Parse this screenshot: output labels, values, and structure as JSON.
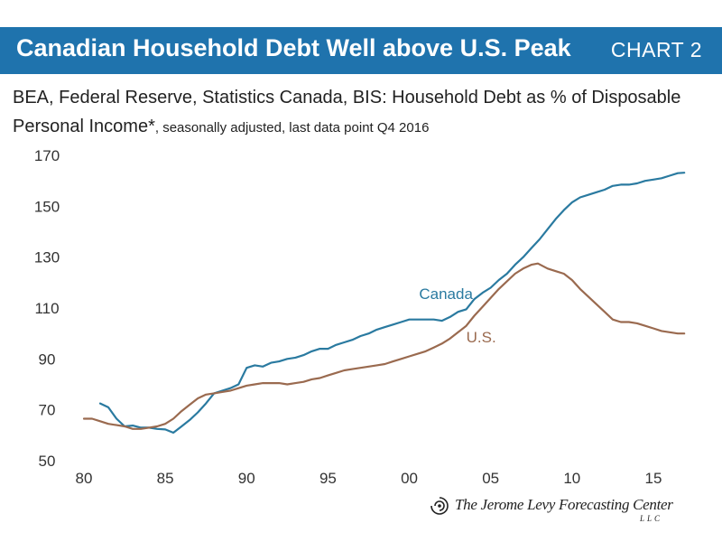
{
  "header": {
    "title": "Canadian Household Debt Well above U.S. Peak",
    "tag": "CHART 2"
  },
  "subtitle": {
    "main": "BEA, Federal Reserve, Statistics Canada, BIS: Household Debt as % of Disposable Personal Income*",
    "note": ", seasonally adjusted, last data point Q4 2016"
  },
  "footer": {
    "logo_name": "The Jerome Levy Forecasting Center",
    "logo_llc": "LLC"
  },
  "colors": {
    "banner": "#1f73ad",
    "canada": "#2a7aa0",
    "us": "#9a6a4f"
  },
  "chart_data": {
    "type": "line",
    "xlim": [
      1980,
      2017
    ],
    "ylim": [
      50,
      170
    ],
    "x_ticks": [
      {
        "value": 1980,
        "label": "80"
      },
      {
        "value": 1985,
        "label": "85"
      },
      {
        "value": 1990,
        "label": "90"
      },
      {
        "value": 1995,
        "label": "95"
      },
      {
        "value": 2000,
        "label": "00"
      },
      {
        "value": 2005,
        "label": "05"
      },
      {
        "value": 2010,
        "label": "10"
      },
      {
        "value": 2015,
        "label": "15"
      }
    ],
    "y_ticks": [
      50,
      70,
      90,
      110,
      130,
      150,
      170
    ],
    "grid": false,
    "series": [
      {
        "name": "Canada",
        "color": "#2a7aa0",
        "points": [
          [
            1981.0,
            72.5
          ],
          [
            1981.5,
            71.0
          ],
          [
            1982.0,
            66.5
          ],
          [
            1982.5,
            63.5
          ],
          [
            1983.0,
            63.8
          ],
          [
            1983.5,
            63.0
          ],
          [
            1984.0,
            63.0
          ],
          [
            1984.5,
            62.5
          ],
          [
            1985.0,
            62.3
          ],
          [
            1985.5,
            61.0
          ],
          [
            1986.0,
            63.5
          ],
          [
            1986.5,
            66.0
          ],
          [
            1987.0,
            69.0
          ],
          [
            1987.5,
            72.5
          ],
          [
            1988.0,
            76.5
          ],
          [
            1988.5,
            77.5
          ],
          [
            1989.0,
            78.5
          ],
          [
            1989.5,
            80.0
          ],
          [
            1990.0,
            86.5
          ],
          [
            1990.5,
            87.5
          ],
          [
            1991.0,
            87.0
          ],
          [
            1991.5,
            88.5
          ],
          [
            1992.0,
            89.0
          ],
          [
            1992.5,
            90.0
          ],
          [
            1993.0,
            90.5
          ],
          [
            1993.5,
            91.5
          ],
          [
            1994.0,
            93.0
          ],
          [
            1994.5,
            94.0
          ],
          [
            1995.0,
            94.0
          ],
          [
            1995.5,
            95.5
          ],
          [
            1996.0,
            96.5
          ],
          [
            1996.5,
            97.5
          ],
          [
            1997.0,
            99.0
          ],
          [
            1997.5,
            100.0
          ],
          [
            1998.0,
            101.5
          ],
          [
            1998.5,
            102.5
          ],
          [
            1999.0,
            103.5
          ],
          [
            1999.5,
            104.5
          ],
          [
            2000.0,
            105.5
          ],
          [
            2000.5,
            105.5
          ],
          [
            2001.0,
            105.5
          ],
          [
            2001.5,
            105.5
          ],
          [
            2002.0,
            105.0
          ],
          [
            2002.5,
            106.5
          ],
          [
            2003.0,
            108.5
          ],
          [
            2003.5,
            109.5
          ],
          [
            2004.0,
            113.5
          ],
          [
            2004.5,
            116.0
          ],
          [
            2005.0,
            118.0
          ],
          [
            2005.5,
            121.0
          ],
          [
            2006.0,
            123.5
          ],
          [
            2006.5,
            127.0
          ],
          [
            2007.0,
            130.0
          ],
          [
            2007.5,
            133.5
          ],
          [
            2008.0,
            137.0
          ],
          [
            2008.5,
            141.0
          ],
          [
            2009.0,
            145.0
          ],
          [
            2009.5,
            148.5
          ],
          [
            2010.0,
            151.5
          ],
          [
            2010.5,
            153.5
          ],
          [
            2011.0,
            154.5
          ],
          [
            2011.5,
            155.5
          ],
          [
            2012.0,
            156.5
          ],
          [
            2012.5,
            158.0
          ],
          [
            2013.0,
            158.5
          ],
          [
            2013.5,
            158.5
          ],
          [
            2014.0,
            159.0
          ],
          [
            2014.5,
            160.0
          ],
          [
            2015.0,
            160.5
          ],
          [
            2015.5,
            161.0
          ],
          [
            2016.0,
            162.0
          ],
          [
            2016.5,
            163.0
          ],
          [
            2016.9,
            163.2
          ]
        ]
      },
      {
        "name": "U.S.",
        "color": "#9a6a4f",
        "points": [
          [
            1980.0,
            66.5
          ],
          [
            1980.5,
            66.5
          ],
          [
            1981.0,
            65.5
          ],
          [
            1981.5,
            64.5
          ],
          [
            1982.0,
            64.0
          ],
          [
            1982.5,
            63.5
          ],
          [
            1983.0,
            62.5
          ],
          [
            1983.5,
            62.5
          ],
          [
            1984.0,
            63.0
          ],
          [
            1984.5,
            63.5
          ],
          [
            1985.0,
            64.5
          ],
          [
            1985.5,
            66.5
          ],
          [
            1986.0,
            69.5
          ],
          [
            1986.5,
            72.0
          ],
          [
            1987.0,
            74.5
          ],
          [
            1987.5,
            76.0
          ],
          [
            1988.0,
            76.5
          ],
          [
            1988.5,
            77.0
          ],
          [
            1989.0,
            77.5
          ],
          [
            1989.5,
            78.5
          ],
          [
            1990.0,
            79.5
          ],
          [
            1990.5,
            80.0
          ],
          [
            1991.0,
            80.5
          ],
          [
            1991.5,
            80.5
          ],
          [
            1992.0,
            80.5
          ],
          [
            1992.5,
            80.0
          ],
          [
            1993.0,
            80.5
          ],
          [
            1993.5,
            81.0
          ],
          [
            1994.0,
            82.0
          ],
          [
            1994.5,
            82.5
          ],
          [
            1995.0,
            83.5
          ],
          [
            1995.5,
            84.5
          ],
          [
            1996.0,
            85.5
          ],
          [
            1996.5,
            86.0
          ],
          [
            1997.0,
            86.5
          ],
          [
            1997.5,
            87.0
          ],
          [
            1998.0,
            87.5
          ],
          [
            1998.5,
            88.0
          ],
          [
            1999.0,
            89.0
          ],
          [
            1999.5,
            90.0
          ],
          [
            2000.0,
            91.0
          ],
          [
            2000.5,
            92.0
          ],
          [
            2001.0,
            93.0
          ],
          [
            2001.5,
            94.5
          ],
          [
            2002.0,
            96.0
          ],
          [
            2002.5,
            98.0
          ],
          [
            2003.0,
            100.5
          ],
          [
            2003.5,
            103.0
          ],
          [
            2004.0,
            107.0
          ],
          [
            2004.5,
            110.5
          ],
          [
            2005.0,
            114.0
          ],
          [
            2005.5,
            117.5
          ],
          [
            2006.0,
            120.5
          ],
          [
            2006.5,
            123.5
          ],
          [
            2007.0,
            125.5
          ],
          [
            2007.5,
            127.0
          ],
          [
            2007.9,
            127.5
          ],
          [
            2008.5,
            125.5
          ],
          [
            2009.0,
            124.5
          ],
          [
            2009.5,
            123.5
          ],
          [
            2010.0,
            121.0
          ],
          [
            2010.5,
            117.5
          ],
          [
            2011.0,
            114.5
          ],
          [
            2011.5,
            111.5
          ],
          [
            2012.0,
            108.5
          ],
          [
            2012.5,
            105.5
          ],
          [
            2013.0,
            104.5
          ],
          [
            2013.5,
            104.5
          ],
          [
            2014.0,
            104.0
          ],
          [
            2014.5,
            103.0
          ],
          [
            2015.0,
            102.0
          ],
          [
            2015.5,
            101.0
          ],
          [
            2016.0,
            100.5
          ],
          [
            2016.5,
            100.0
          ],
          [
            2016.9,
            100.0
          ]
        ]
      }
    ],
    "annotations": [
      {
        "text": "Canada",
        "x": 2000.6,
        "y": 113.5,
        "series": "Canada"
      },
      {
        "text": "U.S.",
        "x": 2003.5,
        "y": 96.5,
        "series": "U.S."
      }
    ]
  }
}
